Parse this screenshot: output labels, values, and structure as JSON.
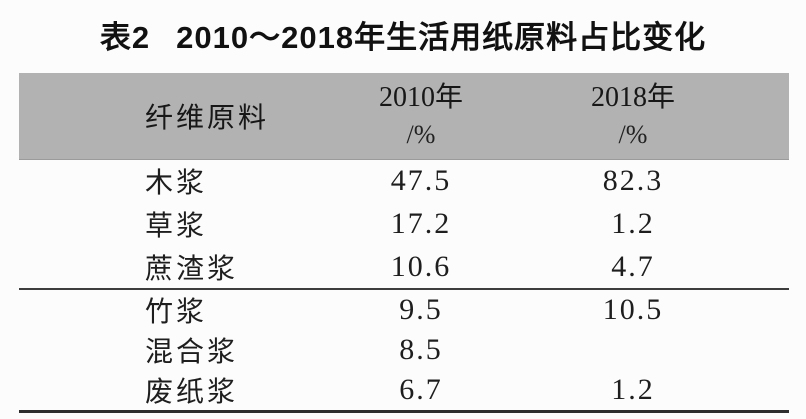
{
  "title": {
    "label": "表2",
    "text": "2010～2018年生活用纸原料占比变化"
  },
  "table": {
    "header": {
      "col1": "纤维原料",
      "col2_line1": "2010年",
      "col2_line2": "/%",
      "col3_line1": "2018年",
      "col3_line2": "/%"
    },
    "rows": [
      {
        "material": "木浆",
        "y2010": "47.5",
        "y2018": "82.3"
      },
      {
        "material": "草浆",
        "y2010": "17.2",
        "y2018": "1.2"
      },
      {
        "material": "蔗渣浆",
        "y2010": "10.6",
        "y2018": "4.7"
      },
      {
        "material": "竹浆",
        "y2010": "9.5",
        "y2018": "10.5"
      },
      {
        "material": "混合浆",
        "y2010": "8.5",
        "y2018": ""
      },
      {
        "material": "废纸浆",
        "y2010": "6.7",
        "y2018": "1.2"
      }
    ]
  },
  "colors": {
    "header_background": "#b2b2b2",
    "text": "#1e1e1e",
    "separator_rule": "#3d3d3d",
    "bottom_rule": "#2e2e2e",
    "page_background": "#fcfcfc"
  },
  "chart_data": {
    "type": "table",
    "title": "表2 2010～2018年生活用纸原料占比变化",
    "columns": [
      "纤维原料",
      "2010年/%",
      "2018年/%"
    ],
    "rows": [
      [
        "木浆",
        47.5,
        82.3
      ],
      [
        "草浆",
        17.2,
        1.2
      ],
      [
        "蔗渣浆",
        10.6,
        4.7
      ],
      [
        "竹浆",
        9.5,
        10.5
      ],
      [
        "混合浆",
        8.5,
        null
      ],
      [
        "废纸浆",
        6.7,
        1.2
      ]
    ],
    "layout": {
      "group_break_after_row_index": 2,
      "header_shaded": true,
      "grid": "horizontal-rules-only"
    }
  }
}
